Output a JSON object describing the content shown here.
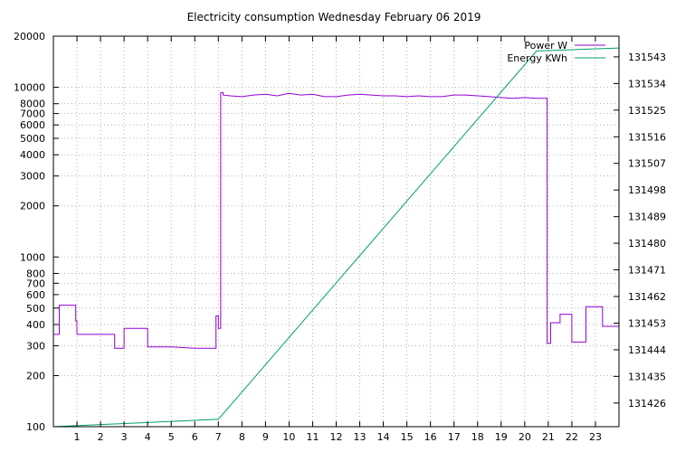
{
  "chart_data": {
    "type": "line",
    "title": "Electricity consumption Wednesday February 06 2019",
    "x_ticks": [
      1,
      2,
      3,
      4,
      5,
      6,
      7,
      8,
      9,
      10,
      11,
      12,
      13,
      14,
      15,
      16,
      17,
      18,
      19,
      20,
      21,
      22,
      23
    ],
    "xlim": [
      0,
      24
    ],
    "y_scale": "log",
    "ylim": [
      100,
      20000
    ],
    "y_ticks": [
      100,
      200,
      300,
      400,
      500,
      600,
      700,
      800,
      1000,
      2000,
      3000,
      4000,
      5000,
      6000,
      7000,
      8000,
      10000,
      20000
    ],
    "y2lim": [
      131418,
      131550
    ],
    "y2_ticks": [
      131426,
      131435,
      131444,
      131453,
      131462,
      131471,
      131480,
      131489,
      131498,
      131507,
      131516,
      131525,
      131534,
      131543
    ],
    "grid": true,
    "legend_position": "top-right",
    "series": [
      {
        "name": "Power W",
        "color": "#9400d3",
        "axis": "y1",
        "x": [
          0,
          0.25,
          0.25,
          0.95,
          0.95,
          1.0,
          1.0,
          2.6,
          2.6,
          3.0,
          3.0,
          4.0,
          4.0,
          5.0,
          6.0,
          6.9,
          6.9,
          7.0,
          7.0,
          7.1,
          7.1,
          7.2,
          7.2,
          7.5,
          8.0,
          8.5,
          9.0,
          9.5,
          10.0,
          10.5,
          11.0,
          11.5,
          12.0,
          12.5,
          13.0,
          13.5,
          14.0,
          14.5,
          15.0,
          15.5,
          16.0,
          16.5,
          17.0,
          17.5,
          18.0,
          18.5,
          19.0,
          19.5,
          20.0,
          20.5,
          20.95,
          20.95,
          21.1,
          21.1,
          21.5,
          21.5,
          22.0,
          22.0,
          22.6,
          22.6,
          23.3,
          23.3,
          24.0
        ],
        "values": [
          350,
          350,
          520,
          520,
          420,
          420,
          350,
          350,
          290,
          290,
          380,
          380,
          295,
          295,
          290,
          290,
          450,
          450,
          380,
          380,
          9300,
          9300,
          9000,
          8900,
          8800,
          9000,
          9100,
          8900,
          9200,
          9000,
          9100,
          8800,
          8800,
          9000,
          9100,
          9000,
          8900,
          8900,
          8800,
          8900,
          8800,
          8800,
          9000,
          9000,
          8900,
          8800,
          8700,
          8600,
          8700,
          8600,
          8600,
          310,
          310,
          410,
          410,
          460,
          460,
          315,
          315,
          510,
          510,
          390,
          390
        ]
      },
      {
        "name": "Energy KWh",
        "color": "#009e73",
        "axis": "y2",
        "x": [
          0,
          7.0,
          20.5,
          24.0
        ],
        "values": [
          131418,
          131420.5,
          131545,
          131546
        ]
      }
    ]
  }
}
